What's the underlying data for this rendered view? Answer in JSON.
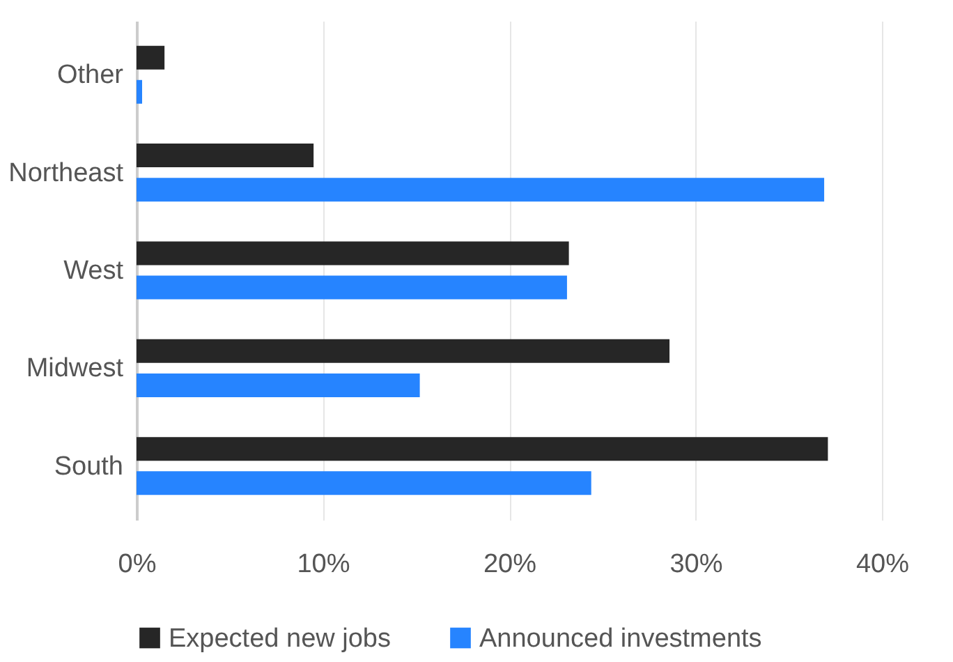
{
  "chart_data": {
    "type": "bar",
    "orientation": "horizontal",
    "categories": [
      "Other",
      "Northeast",
      "West",
      "Midwest",
      "South"
    ],
    "series": [
      {
        "name": "Expected new jobs",
        "color": "#262626",
        "values": [
          1.5,
          9.5,
          23.2,
          28.6,
          37.1
        ]
      },
      {
        "name": "Announced investments",
        "color": "#2684ff",
        "values": [
          0.3,
          36.9,
          23.1,
          15.2,
          24.4
        ]
      }
    ],
    "xlim": [
      0,
      40
    ],
    "xticks": [
      {
        "value": 0,
        "label": "0%"
      },
      {
        "value": 10,
        "label": "10%"
      },
      {
        "value": 20,
        "label": "20%"
      },
      {
        "value": 30,
        "label": "30%"
      },
      {
        "value": 40,
        "label": "40%"
      }
    ],
    "grid": "x",
    "legend": "bottom"
  }
}
